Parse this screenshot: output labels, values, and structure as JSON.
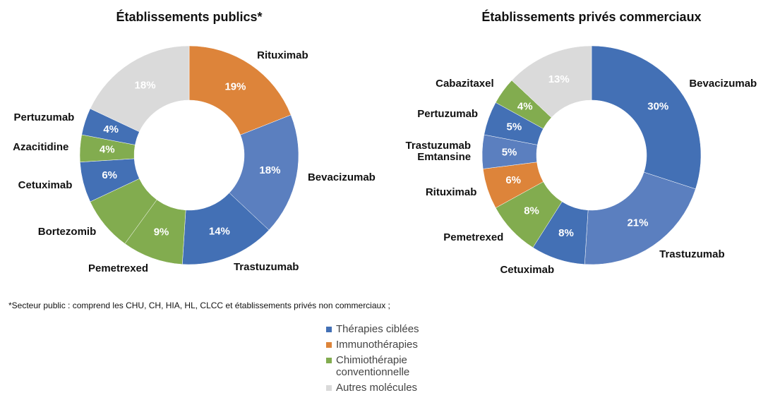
{
  "chart_data": [
    {
      "type": "donut",
      "title": "Établissements publics*",
      "categories": [
        "Rituximab",
        "Bevacizumab",
        "Trastuzumab",
        "Pemetrexed",
        "Bortezomib",
        "Cetuximab",
        "Azacitidine",
        "Pertuzumab",
        null
      ],
      "values": [
        19,
        18,
        14,
        9,
        8,
        6,
        4,
        4,
        18
      ],
      "value_labels": [
        "19%",
        "18%",
        "14%",
        "9%",
        null,
        "6%",
        "4%",
        "4%",
        "18%"
      ],
      "colors": [
        "#dd843a",
        "#5b7fbf",
        "#4370b5",
        "#82ac4f",
        "#82ac4f",
        "#4370b5",
        "#82ac4f",
        "#4370b5",
        "#dadada"
      ]
    },
    {
      "type": "donut",
      "title": "Établissements privés commerciaux",
      "categories": [
        "Bevacizumab",
        "Trastuzumab",
        "Cetuximab",
        "Pemetrexed",
        "Rituximab",
        "Trastuzumab Emtansine",
        "Pertuzumab",
        "Cabazitaxel",
        null
      ],
      "values": [
        30,
        21,
        8,
        8,
        6,
        5,
        5,
        4,
        13
      ],
      "value_labels": [
        "30%",
        "21%",
        "8%",
        "8%",
        "6%",
        "5%",
        "5%",
        "4%",
        "13%"
      ],
      "colors": [
        "#4370b5",
        "#5b7fbf",
        "#4370b5",
        "#82ac4f",
        "#dd843a",
        "#5b7fbf",
        "#4370b5",
        "#82ac4f",
        "#dadada"
      ]
    }
  ],
  "footnote": "*Secteur public : comprend les CHU, CH, HIA, HL, CLCC et établissements privés non commerciaux ;",
  "legend": [
    {
      "name": "Thérapies ciblées",
      "color": "#4370b5"
    },
    {
      "name": "Immunothérapies",
      "color": "#dd843a"
    },
    {
      "name": "Chimiothérapie conventionnelle",
      "color": "#82ac4f"
    },
    {
      "name": "Autres molécules",
      "color": "#dadada"
    }
  ]
}
